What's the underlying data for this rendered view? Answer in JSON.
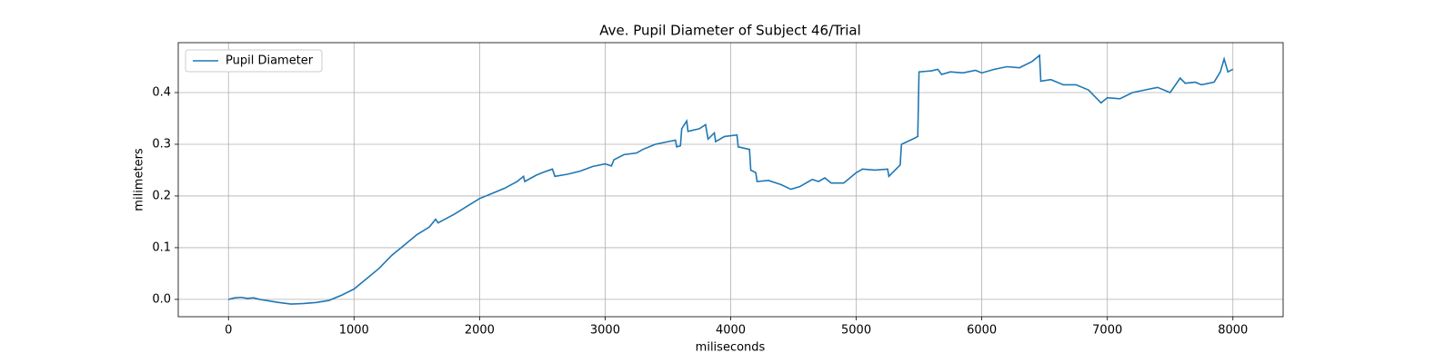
{
  "chart_data": {
    "type": "line",
    "title": "Ave. Pupil Diameter of Subject 46/Trial",
    "x_label": "miliseconds",
    "y_label": "milimeters",
    "xlim": [
      -400,
      8400
    ],
    "ylim": [
      -0.0335,
      0.4965
    ],
    "xticks": [
      0,
      1000,
      2000,
      3000,
      4000,
      5000,
      6000,
      7000,
      8000
    ],
    "yticks": [
      {
        "value": 0,
        "label": "0.0"
      },
      0.1,
      0.2,
      0.3,
      0.4
    ],
    "grid": true,
    "legend": "upper left",
    "x": [
      0,
      50,
      100,
      150,
      200,
      250,
      300,
      400,
      500,
      600,
      700,
      800,
      900,
      1000,
      1100,
      1200,
      1300,
      1400,
      1500,
      1600,
      1650,
      1670,
      1700,
      1800,
      1900,
      2000,
      2100,
      2200,
      2300,
      2350,
      2360,
      2450,
      2500,
      2580,
      2600,
      2700,
      2800,
      2900,
      3000,
      3050,
      3070,
      3150,
      3250,
      3300,
      3400,
      3500,
      3560,
      3570,
      3600,
      3610,
      3650,
      3660,
      3750,
      3800,
      3820,
      3870,
      3880,
      3950,
      4050,
      4060,
      4150,
      4160,
      4200,
      4210,
      4300,
      4400,
      4480,
      4550,
      4650,
      4700,
      4750,
      4800,
      4900,
      5000,
      5050,
      5150,
      5250,
      5260,
      5350,
      5360,
      5450,
      5490,
      5500,
      5600,
      5650,
      5680,
      5750,
      5850,
      5950,
      6000,
      6100,
      6200,
      6300,
      6400,
      6460,
      6470,
      6550,
      6650,
      6750,
      6850,
      6950,
      7000,
      7100,
      7200,
      7300,
      7400,
      7500,
      7580,
      7620,
      7700,
      7750,
      7850,
      7900,
      7930,
      7960,
      8000
    ],
    "series": [
      {
        "name": "Pupil Diameter",
        "color": "#1f77b4",
        "values": [
          0.0,
          0.003,
          0.004,
          0.002,
          0.003,
          0.0,
          -0.002,
          -0.006,
          -0.009,
          -0.008,
          -0.006,
          -0.002,
          0.008,
          0.02,
          0.04,
          0.06,
          0.085,
          0.105,
          0.125,
          0.14,
          0.155,
          0.148,
          0.152,
          0.165,
          0.18,
          0.195,
          0.205,
          0.215,
          0.228,
          0.238,
          0.228,
          0.24,
          0.245,
          0.252,
          0.238,
          0.242,
          0.248,
          0.257,
          0.262,
          0.258,
          0.27,
          0.28,
          0.283,
          0.29,
          0.3,
          0.305,
          0.308,
          0.295,
          0.297,
          0.33,
          0.345,
          0.325,
          0.33,
          0.338,
          0.31,
          0.322,
          0.305,
          0.315,
          0.318,
          0.295,
          0.29,
          0.25,
          0.245,
          0.228,
          0.23,
          0.222,
          0.213,
          0.218,
          0.232,
          0.228,
          0.235,
          0.225,
          0.225,
          0.245,
          0.252,
          0.25,
          0.252,
          0.238,
          0.26,
          0.3,
          0.31,
          0.315,
          0.44,
          0.442,
          0.445,
          0.435,
          0.44,
          0.438,
          0.443,
          0.438,
          0.445,
          0.45,
          0.448,
          0.46,
          0.472,
          0.422,
          0.425,
          0.415,
          0.415,
          0.405,
          0.38,
          0.39,
          0.388,
          0.4,
          0.405,
          0.41,
          0.4,
          0.428,
          0.418,
          0.42,
          0.415,
          0.42,
          0.44,
          0.465,
          0.44,
          0.445
        ]
      }
    ]
  }
}
